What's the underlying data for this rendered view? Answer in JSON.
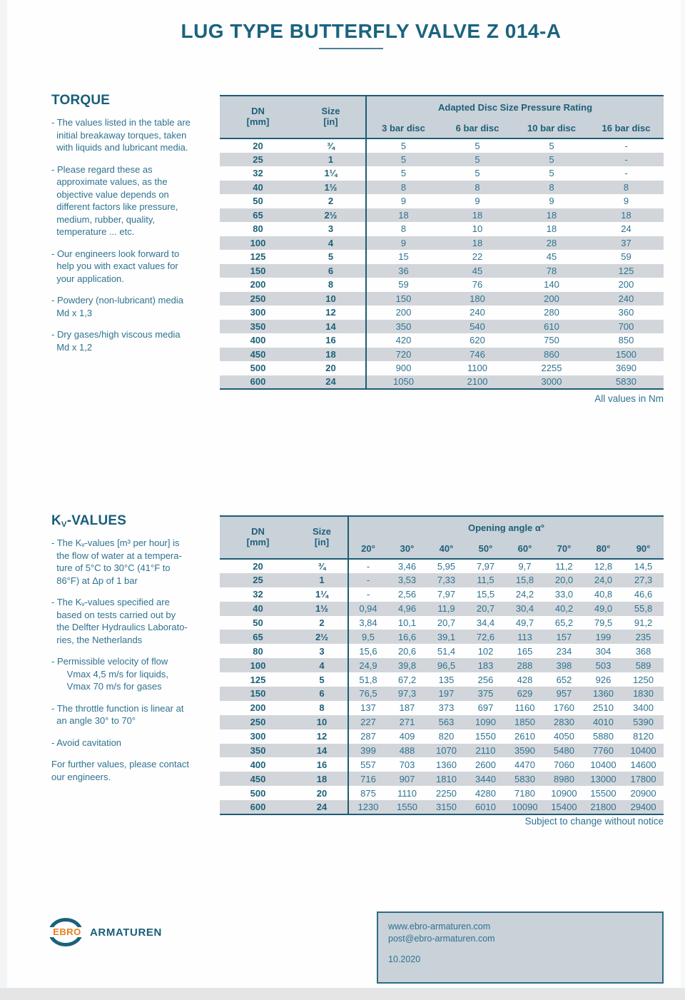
{
  "page": {
    "title": "LUG TYPE BUTTERFLY VALVE Z 014-A"
  },
  "torque": {
    "heading": "TORQUE",
    "notes": [
      [
        "- The values listed in the table are",
        "  initial breakaway torques, taken",
        "  with liquids and lubricant media."
      ],
      [
        "- Please regard these as",
        "  approximate values, as the",
        "  objective value depends on",
        "  different factors like pressure,",
        "  medium, rubber, quality,",
        "  temperature ... etc."
      ],
      [
        "- Our engineers look forward to",
        "  help you with exact values for",
        "  your application."
      ],
      [
        "- Powdery (non-lubricant) media",
        "  Md x 1,3"
      ],
      [
        "- Dry gases/high viscous media",
        "  Md x 1,2"
      ]
    ],
    "table": {
      "dn_label": "DN",
      "dn_unit": "[mm]",
      "size_label": "Size",
      "size_unit": "[in]",
      "group_header": "Adapted Disc Size Pressure Rating",
      "columns": [
        "3 bar disc",
        "6 bar disc",
        "10 bar disc",
        "16 bar disc"
      ],
      "rows": [
        [
          "20",
          "¾",
          "5",
          "5",
          "5",
          "-"
        ],
        [
          "25",
          "1",
          "5",
          "5",
          "5",
          "-"
        ],
        [
          "32",
          "1¼",
          "5",
          "5",
          "5",
          "-"
        ],
        [
          "40",
          "1½",
          "8",
          "8",
          "8",
          "8"
        ],
        [
          "50",
          "2",
          "9",
          "9",
          "9",
          "9"
        ],
        [
          "65",
          "2½",
          "18",
          "18",
          "18",
          "18"
        ],
        [
          "80",
          "3",
          "8",
          "10",
          "18",
          "24"
        ],
        [
          "100",
          "4",
          "9",
          "18",
          "28",
          "37"
        ],
        [
          "125",
          "5",
          "15",
          "22",
          "45",
          "59"
        ],
        [
          "150",
          "6",
          "36",
          "45",
          "78",
          "125"
        ],
        [
          "200",
          "8",
          "59",
          "76",
          "140",
          "200"
        ],
        [
          "250",
          "10",
          "150",
          "180",
          "200",
          "240"
        ],
        [
          "300",
          "12",
          "200",
          "240",
          "280",
          "360"
        ],
        [
          "350",
          "14",
          "350",
          "540",
          "610",
          "700"
        ],
        [
          "400",
          "16",
          "420",
          "620",
          "750",
          "850"
        ],
        [
          "450",
          "18",
          "720",
          "746",
          "860",
          "1500"
        ],
        [
          "500",
          "20",
          "900",
          "1100",
          "2255",
          "3690"
        ],
        [
          "600",
          "24",
          "1050",
          "2100",
          "3000",
          "5830"
        ]
      ],
      "footnote": "All values in Nm"
    }
  },
  "kv": {
    "heading_k": "K",
    "heading_sub": "V",
    "heading_rest": "-VALUES",
    "notes": [
      [
        "- The Kᵥ-values [m³ per hour] is",
        "  the flow of water at a tempera-",
        "  ture of 5°C to 30°C (41°F to",
        "  86°F) at Δp of 1 bar"
      ],
      [
        "- The Kᵥ-values specified are",
        "  based on tests carried out by",
        "  the Delfter Hydraulics Laborato-",
        "  ries, the Netherlands"
      ],
      [
        "- Permissible velocity of flow",
        "      Vmax 4,5 m/s for liquids,",
        "      Vmax 70 m/s for gases"
      ],
      [
        "- The throttle function is linear at",
        "  an angle 30° to 70°"
      ],
      [
        "- Avoid cavitation"
      ],
      [
        "For further values, please contact",
        "our engineers."
      ]
    ],
    "table": {
      "dn_label": "DN",
      "dn_unit": "[mm]",
      "size_label": "Size",
      "size_unit": "[in]",
      "group_header": "Opening angle α°",
      "columns": [
        "20°",
        "30°",
        "40°",
        "50°",
        "60°",
        "70°",
        "80°",
        "90°"
      ],
      "rows": [
        [
          "20",
          "¾",
          "-",
          "3,46",
          "5,95",
          "7,97",
          "9,7",
          "11,2",
          "12,8",
          "14,5"
        ],
        [
          "25",
          "1",
          "-",
          "3,53",
          "7,33",
          "11,5",
          "15,8",
          "20,0",
          "24,0",
          "27,3"
        ],
        [
          "32",
          "1¼",
          "-",
          "2,56",
          "7,97",
          "15,5",
          "24,2",
          "33,0",
          "40,8",
          "46,6"
        ],
        [
          "40",
          "1½",
          "0,94",
          "4,96",
          "11,9",
          "20,7",
          "30,4",
          "40,2",
          "49,0",
          "55,8"
        ],
        [
          "50",
          "2",
          "3,84",
          "10,1",
          "20,7",
          "34,4",
          "49,7",
          "65,2",
          "79,5",
          "91,2"
        ],
        [
          "65",
          "2½",
          "9,5",
          "16,6",
          "39,1",
          "72,6",
          "113",
          "157",
          "199",
          "235"
        ],
        [
          "80",
          "3",
          "15,6",
          "20,6",
          "51,4",
          "102",
          "165",
          "234",
          "304",
          "368"
        ],
        [
          "100",
          "4",
          "24,9",
          "39,8",
          "96,5",
          "183",
          "288",
          "398",
          "503",
          "589"
        ],
        [
          "125",
          "5",
          "51,8",
          "67,2",
          "135",
          "256",
          "428",
          "652",
          "926",
          "1250"
        ],
        [
          "150",
          "6",
          "76,5",
          "97,3",
          "197",
          "375",
          "629",
          "957",
          "1360",
          "1830"
        ],
        [
          "200",
          "8",
          "137",
          "187",
          "373",
          "697",
          "1160",
          "1760",
          "2510",
          "3400"
        ],
        [
          "250",
          "10",
          "227",
          "271",
          "563",
          "1090",
          "1850",
          "2830",
          "4010",
          "5390"
        ],
        [
          "300",
          "12",
          "287",
          "409",
          "820",
          "1550",
          "2610",
          "4050",
          "5880",
          "8120"
        ],
        [
          "350",
          "14",
          "399",
          "488",
          "1070",
          "2110",
          "3590",
          "5480",
          "7760",
          "10400"
        ],
        [
          "400",
          "16",
          "557",
          "703",
          "1360",
          "2600",
          "4470",
          "7060",
          "10400",
          "14600"
        ],
        [
          "450",
          "18",
          "716",
          "907",
          "1810",
          "3440",
          "5830",
          "8980",
          "13000",
          "17800"
        ],
        [
          "500",
          "20",
          "875",
          "1110",
          "2250",
          "4280",
          "7180",
          "10900",
          "15500",
          "20900"
        ],
        [
          "600",
          "24",
          "1230",
          "1550",
          "3150",
          "6010",
          "10090",
          "15400",
          "21800",
          "29400"
        ]
      ],
      "footnote": "Subject to change without notice"
    }
  },
  "footer": {
    "logo_text": "EBRO",
    "brand": "ARMATUREN",
    "website": "www.ebro-armaturen.com",
    "email": "post@ebro-armaturen.com",
    "date": "10.2020"
  },
  "colors": {
    "accent_teal_dark": "#1b5e78",
    "accent_teal": "#2e7390",
    "header_band": "#c9d1d9",
    "row_stripe": "#d2d6db",
    "logo_orange": "#e87c1e"
  }
}
